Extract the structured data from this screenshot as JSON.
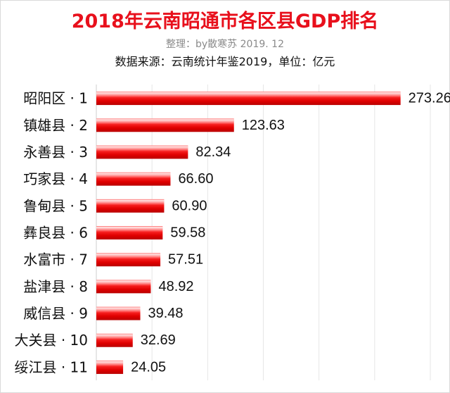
{
  "header": {
    "title": "2018年云南昭通市各区县GDP排名",
    "subtitle": "整理：by散寒苏  2019. 12",
    "source": "数据来源：云南统计年鉴2019，单位：亿元"
  },
  "chart_data": {
    "type": "bar",
    "orientation": "horizontal",
    "title": "2018年云南昭通市各区县GDP排名",
    "xlabel": "",
    "ylabel": "",
    "grid": true,
    "categories": [
      "昭阳区 · 1",
      "镇雄县 · 2",
      "永善县 · 3",
      "巧家县 · 4",
      "鲁甸县 · 5",
      "彝良县 · 6",
      "水富市 · 7",
      "盐津县 · 8",
      "威信县 · 9",
      "大关县 · 10",
      "绥江县 · 11"
    ],
    "values": [
      273.26,
      123.63,
      82.34,
      66.6,
      60.9,
      59.58,
      57.51,
      48.92,
      39.48,
      32.69,
      24.05
    ],
    "value_labels": [
      "273.26",
      "123.63",
      "82.34",
      "66.60",
      "60.90",
      "59.58",
      "57.51",
      "48.92",
      "39.48",
      "32.69",
      "24.05"
    ],
    "xlim": [
      0,
      300
    ],
    "bar_color": "#e8101c"
  }
}
